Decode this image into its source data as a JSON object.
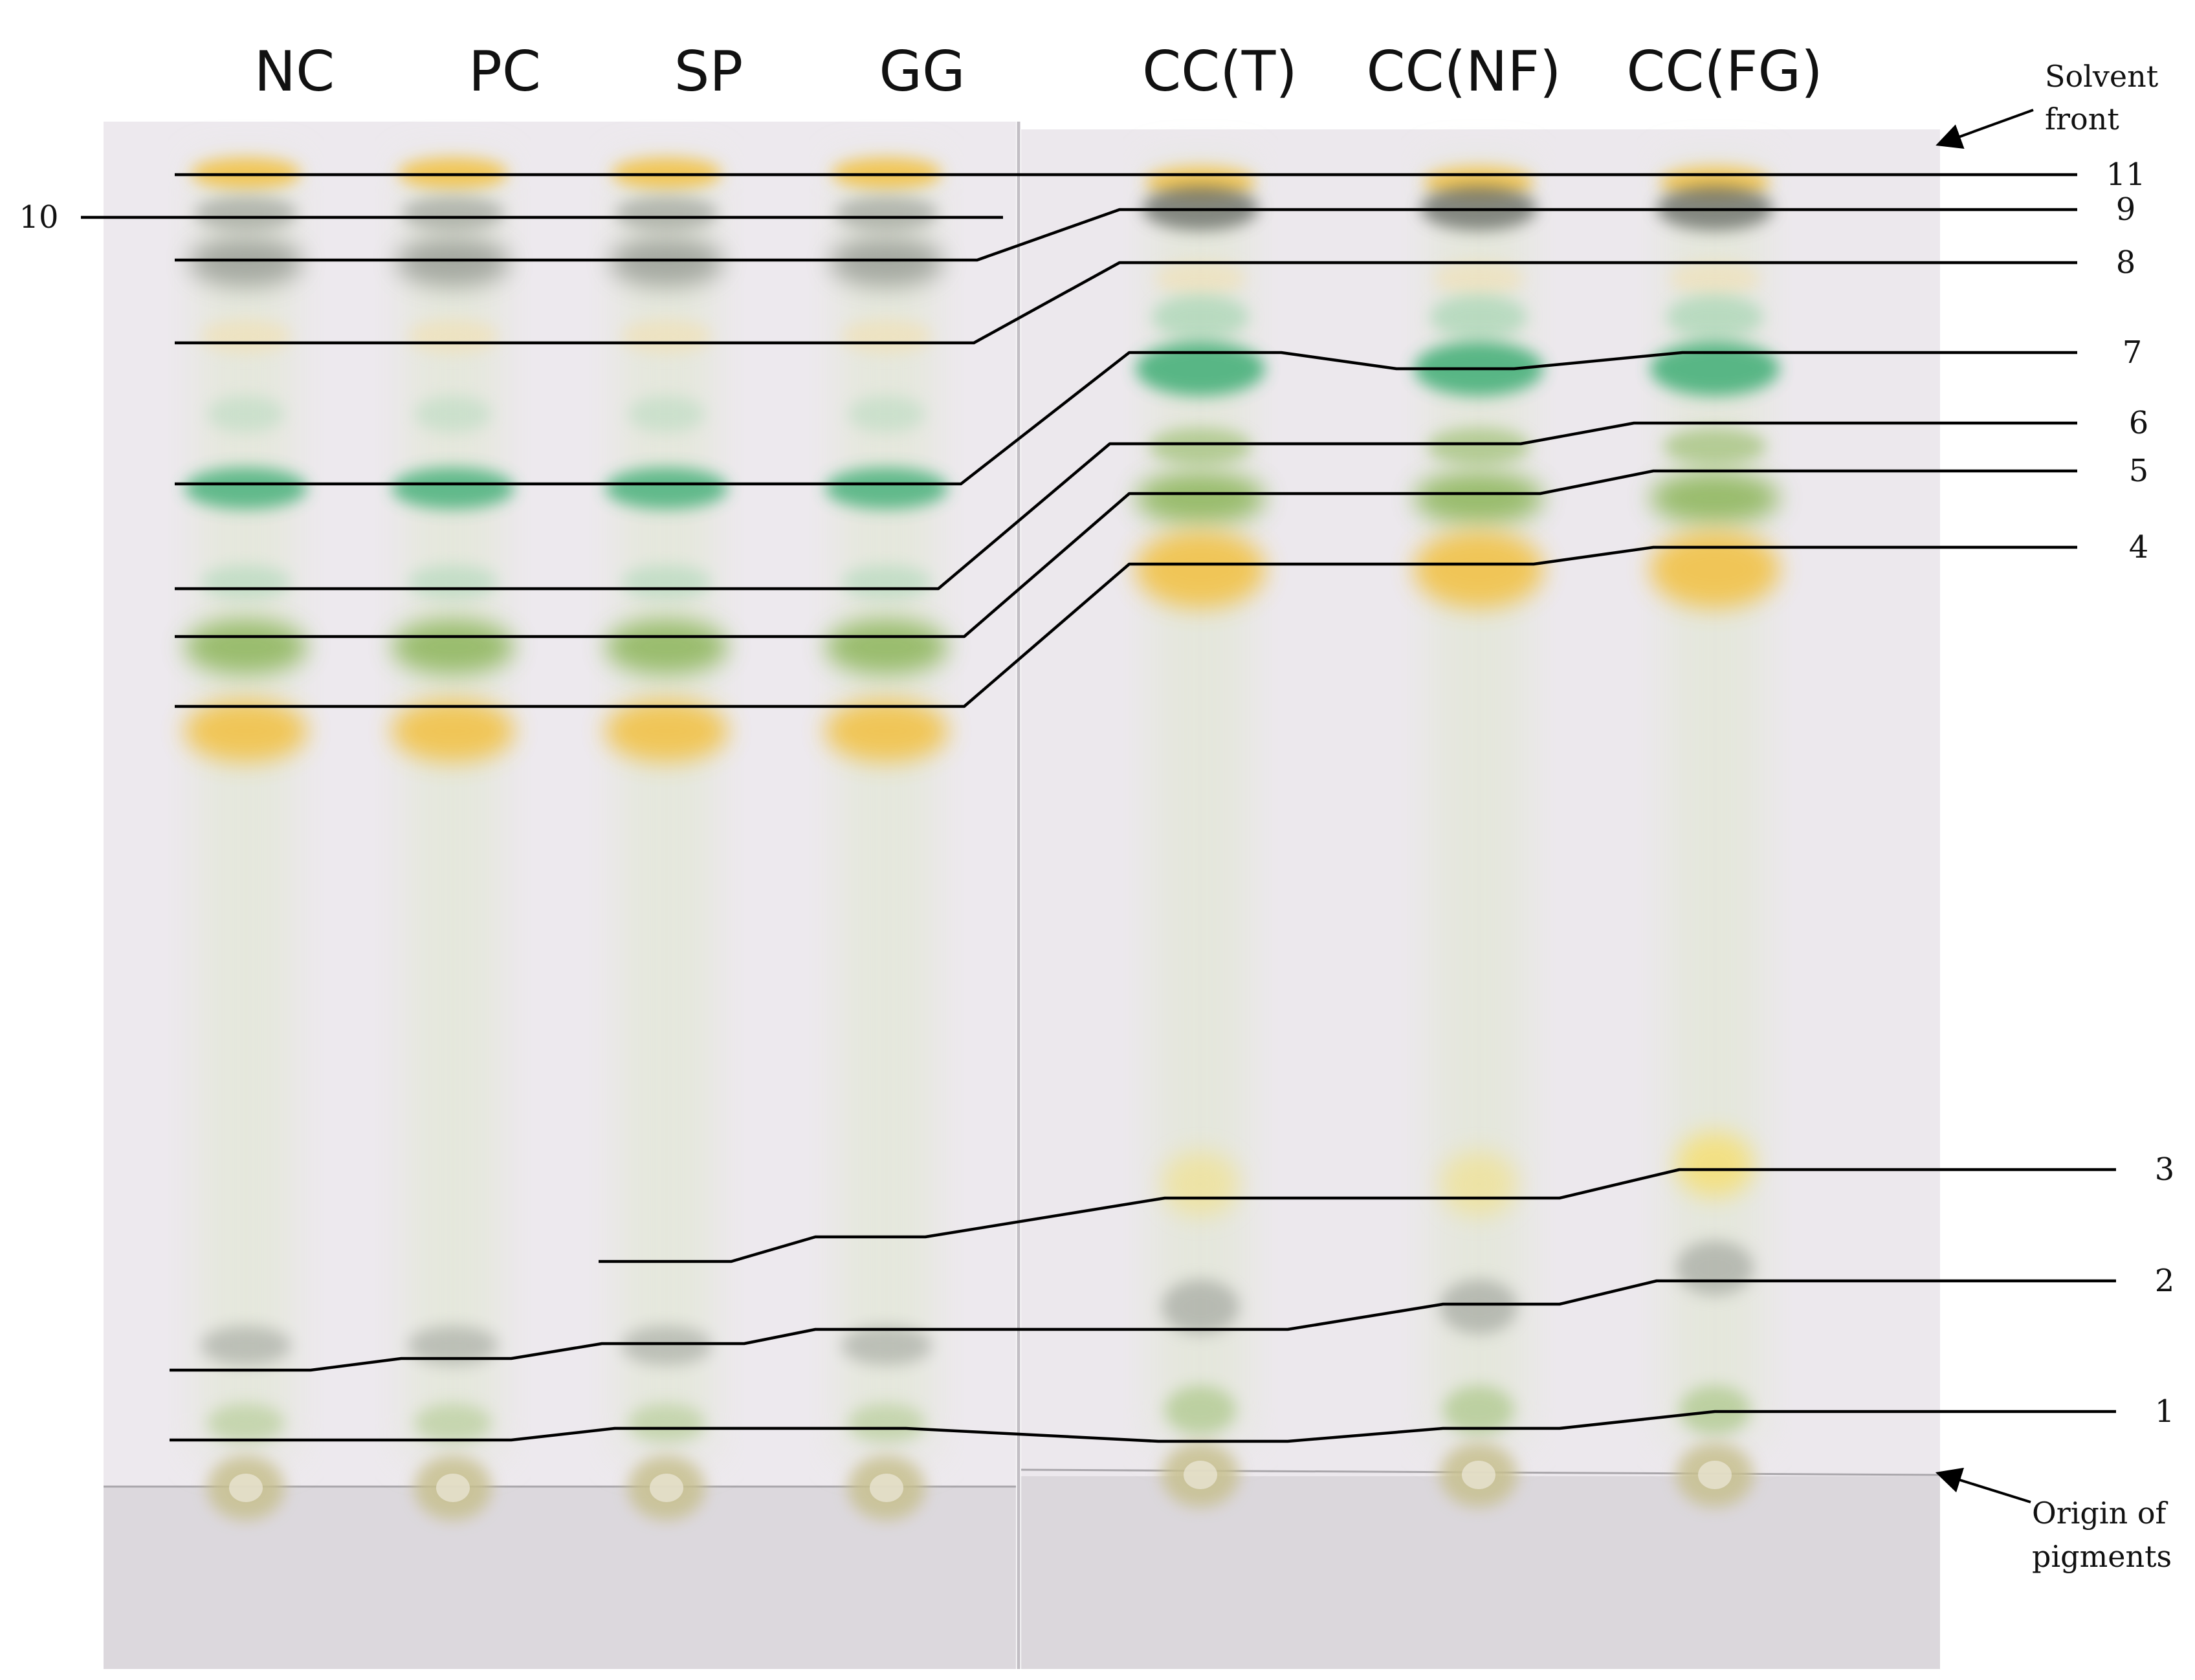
{
  "lanes": [
    {
      "label": "NC"
    },
    {
      "label": "PC"
    },
    {
      "label": "SP"
    },
    {
      "label": "GG"
    },
    {
      "label": "CC(T)"
    },
    {
      "label": "CC(NF)"
    },
    {
      "label": "CC(FG)"
    }
  ],
  "bands": [
    {
      "label": "1"
    },
    {
      "label": "2"
    },
    {
      "label": "3"
    },
    {
      "label": "4"
    },
    {
      "label": "5"
    },
    {
      "label": "6"
    },
    {
      "label": "7"
    },
    {
      "label": "8"
    },
    {
      "label": "9"
    },
    {
      "label": "10"
    },
    {
      "label": "11"
    }
  ],
  "annotations": {
    "solvent_front": [
      "Solvent",
      "front"
    ],
    "origin": [
      "Origin of",
      "pigments"
    ]
  },
  "colors": {
    "plate": "#ede9ee",
    "plate_bottom": "#d9d5da",
    "band_yellow": "#f2c24a",
    "band_green_light": "#9cd3ad",
    "band_green_dark": "#3fae76",
    "band_olive": "#8cb55a",
    "band_grey": "#8a8f88"
  }
}
